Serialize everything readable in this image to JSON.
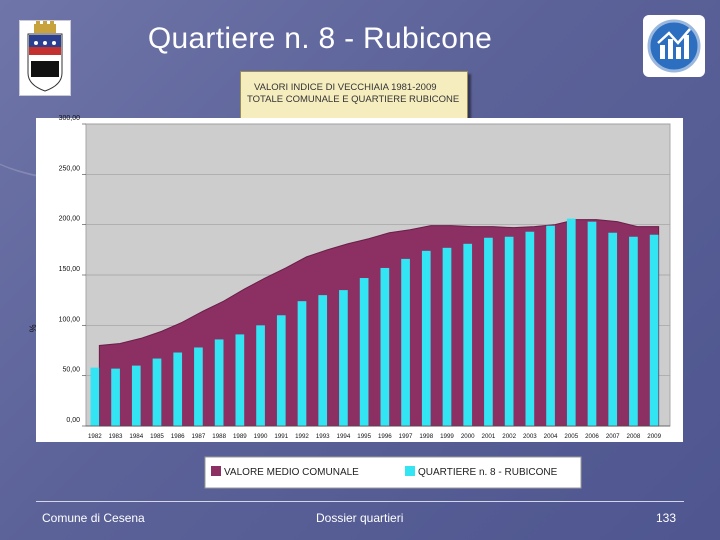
{
  "slide": {
    "title": "Quartiere n. 8 - Rubicone",
    "footer_left": "Comune di Cesena",
    "footer_center": "Dossier quartieri",
    "page_number": "133"
  },
  "chart_data": {
    "type": "bar",
    "title_lines": [
      "VALORI INDICE DI VECCHIAIA 1981-2009",
      "TOTALE COMUNALE E QUARTIERE RUBICONE"
    ],
    "ylabel": "%",
    "ylim": [
      0,
      300
    ],
    "yticks": [
      "0,00",
      "50,00",
      "100,00",
      "150,00",
      "200,00",
      "250,00",
      "300,00"
    ],
    "grid": true,
    "legend_position": "bottom",
    "categories": [
      "1982",
      "1983",
      "1984",
      "1985",
      "1986",
      "1987",
      "1988",
      "1989",
      "1990",
      "1991",
      "1992",
      "1993",
      "1994",
      "1995",
      "1996",
      "1997",
      "1998",
      "1999",
      "2000",
      "2001",
      "2002",
      "2003",
      "2004",
      "2005",
      "2006",
      "2007",
      "2008",
      "2009"
    ],
    "series": [
      {
        "name": "VALORE MEDIO COMUNALE",
        "type": "area",
        "color": "#8c2f63",
        "values": [
          80,
          82,
          87,
          94,
          103,
          114,
          124,
          136,
          147,
          157,
          168,
          175,
          181,
          186,
          192,
          195,
          199,
          199,
          198,
          198,
          197,
          198,
          200,
          205,
          205,
          203,
          198,
          198
        ]
      },
      {
        "name": "QUARTIERE n. 8 - RUBICONE",
        "type": "bar",
        "color": "#33e4f2",
        "values": [
          58,
          57,
          60,
          67,
          73,
          78,
          86,
          91,
          100,
          110,
          124,
          130,
          135,
          147,
          157,
          166,
          174,
          177,
          181,
          187,
          188,
          193,
          199,
          206,
          203,
          192,
          188,
          190
        ]
      }
    ]
  }
}
